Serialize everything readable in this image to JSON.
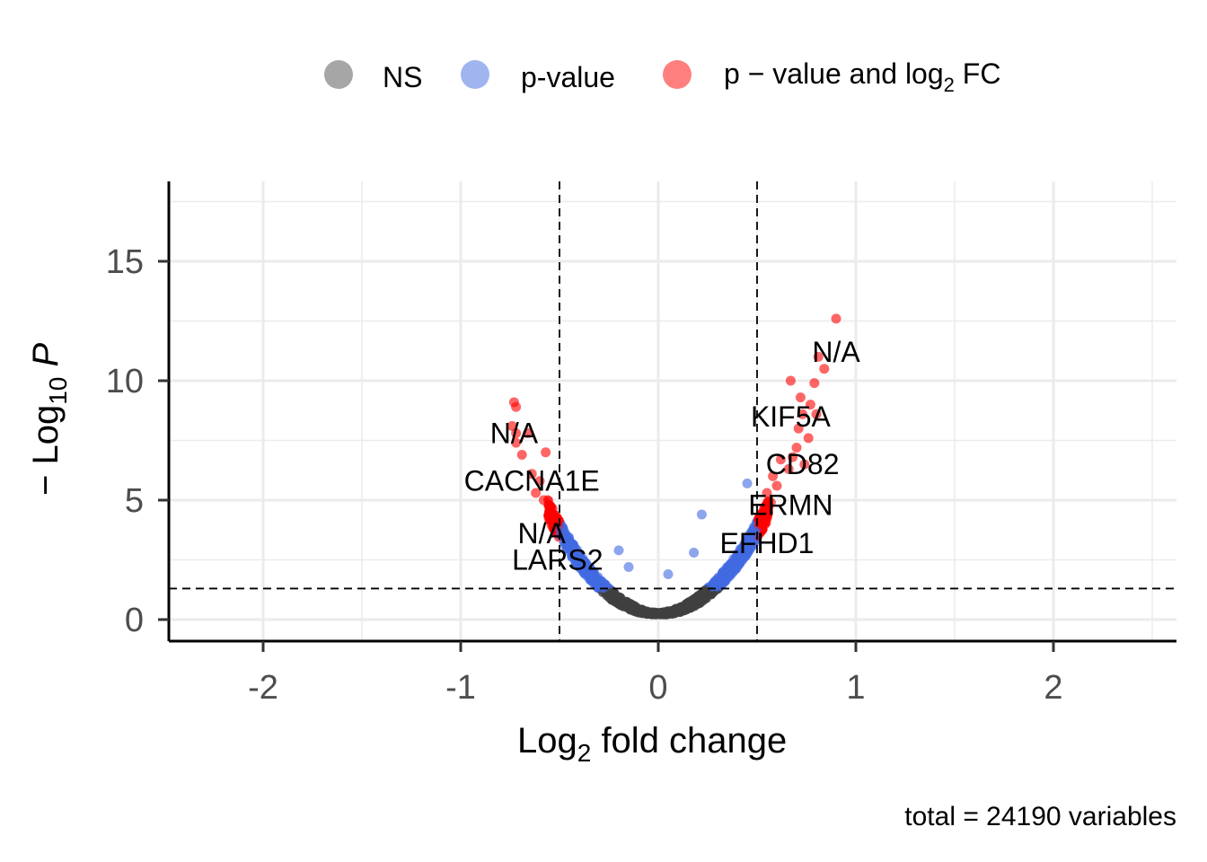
{
  "chart_data": {
    "type": "scatter",
    "subtype": "volcano",
    "xlabel_main": "Log",
    "xlabel_sub": "2",
    "xlabel_rest": " fold change",
    "ylabel_prefix": "− Log",
    "ylabel_sub": "10",
    "ylabel_italic": "P",
    "xlim": [
      -2.5,
      2.62
    ],
    "ylim": [
      -0.8,
      18.3
    ],
    "x_ticks": [
      -2,
      -1,
      0,
      1,
      2
    ],
    "y_ticks": [
      0,
      5,
      10,
      15
    ],
    "x_tick_labels": [
      "-2",
      "-1",
      "0",
      "1",
      "2"
    ],
    "y_tick_labels": [
      "0",
      "5",
      "10",
      "15"
    ],
    "grid": true,
    "fc_cutoff": 0.5,
    "p_cutoff_neglog10": 1.3,
    "caption": "total = 24190 variables",
    "legend": {
      "position": "top",
      "entries": [
        {
          "key": "ns",
          "label": "NS",
          "color": "#808080"
        },
        {
          "key": "p",
          "label": "p-value",
          "color": "#4169e1"
        },
        {
          "key": "both",
          "label_parts": [
            "p − value and log",
            "2",
            " FC"
          ],
          "color": "#ff0000"
        }
      ]
    },
    "colors": {
      "ns": "#404040",
      "p": "#4169e1",
      "both": "#ff0000"
    },
    "highlight_points": [
      {
        "x": 0.9,
        "y": 12.6
      },
      {
        "x": 0.81,
        "y": 11.0
      },
      {
        "x": 0.84,
        "y": 10.5
      },
      {
        "x": 0.79,
        "y": 9.9
      },
      {
        "x": 0.67,
        "y": 10.0
      },
      {
        "x": 0.72,
        "y": 9.3
      },
      {
        "x": 0.77,
        "y": 9.0
      },
      {
        "x": 0.8,
        "y": 8.6
      },
      {
        "x": 0.73,
        "y": 8.6
      },
      {
        "x": 0.71,
        "y": 8.0
      },
      {
        "x": 0.76,
        "y": 7.6
      },
      {
        "x": 0.7,
        "y": 7.2
      },
      {
        "x": 0.68,
        "y": 6.8
      },
      {
        "x": 0.74,
        "y": 6.5
      },
      {
        "x": 0.62,
        "y": 6.7
      },
      {
        "x": 0.66,
        "y": 6.3
      },
      {
        "x": 0.58,
        "y": 6.0
      },
      {
        "x": 0.6,
        "y": 5.6
      },
      {
        "x": 0.55,
        "y": 5.3
      },
      {
        "x": 0.57,
        "y": 4.9
      },
      {
        "x": -0.73,
        "y": 9.1
      },
      {
        "x": -0.72,
        "y": 8.9
      },
      {
        "x": -0.74,
        "y": 8.1
      },
      {
        "x": -0.72,
        "y": 7.8
      },
      {
        "x": -0.66,
        "y": 7.8
      },
      {
        "x": -0.72,
        "y": 7.4
      },
      {
        "x": -0.57,
        "y": 7.0
      },
      {
        "x": -0.69,
        "y": 6.9
      },
      {
        "x": -0.64,
        "y": 6.1
      },
      {
        "x": -0.6,
        "y": 5.8
      },
      {
        "x": -0.62,
        "y": 5.3
      },
      {
        "x": -0.58,
        "y": 5.0
      },
      {
        "x": -0.55,
        "y": 4.6
      },
      {
        "x": 0.22,
        "y": 4.4
      },
      {
        "x": 0.45,
        "y": 5.7
      },
      {
        "x": 0.18,
        "y": 2.8
      },
      {
        "x": 0.05,
        "y": 1.9
      },
      {
        "x": -0.2,
        "y": 2.9
      },
      {
        "x": -0.15,
        "y": 2.2
      }
    ],
    "labels": [
      {
        "text": "N/A",
        "x": 0.9,
        "y": 11.2
      },
      {
        "text": "KIF5A",
        "x": 0.67,
        "y": 8.5
      },
      {
        "text": "CD82",
        "x": 0.73,
        "y": 6.5
      },
      {
        "text": "ERMN",
        "x": 0.67,
        "y": 4.8
      },
      {
        "text": "EFHD1",
        "x": 0.55,
        "y": 3.2
      },
      {
        "text": "N/A",
        "x": -0.73,
        "y": 7.8
      },
      {
        "text": "CACNA1E",
        "x": -0.64,
        "y": 5.8
      },
      {
        "text": "N/A",
        "x": -0.59,
        "y": 3.6
      },
      {
        "text": "LARS2",
        "x": -0.51,
        "y": 2.5
      }
    ],
    "summary": "24190 genes plotted; NS near origin, blue for p < 0.05 within |log2FC| < 0.5, red for both criteria"
  }
}
